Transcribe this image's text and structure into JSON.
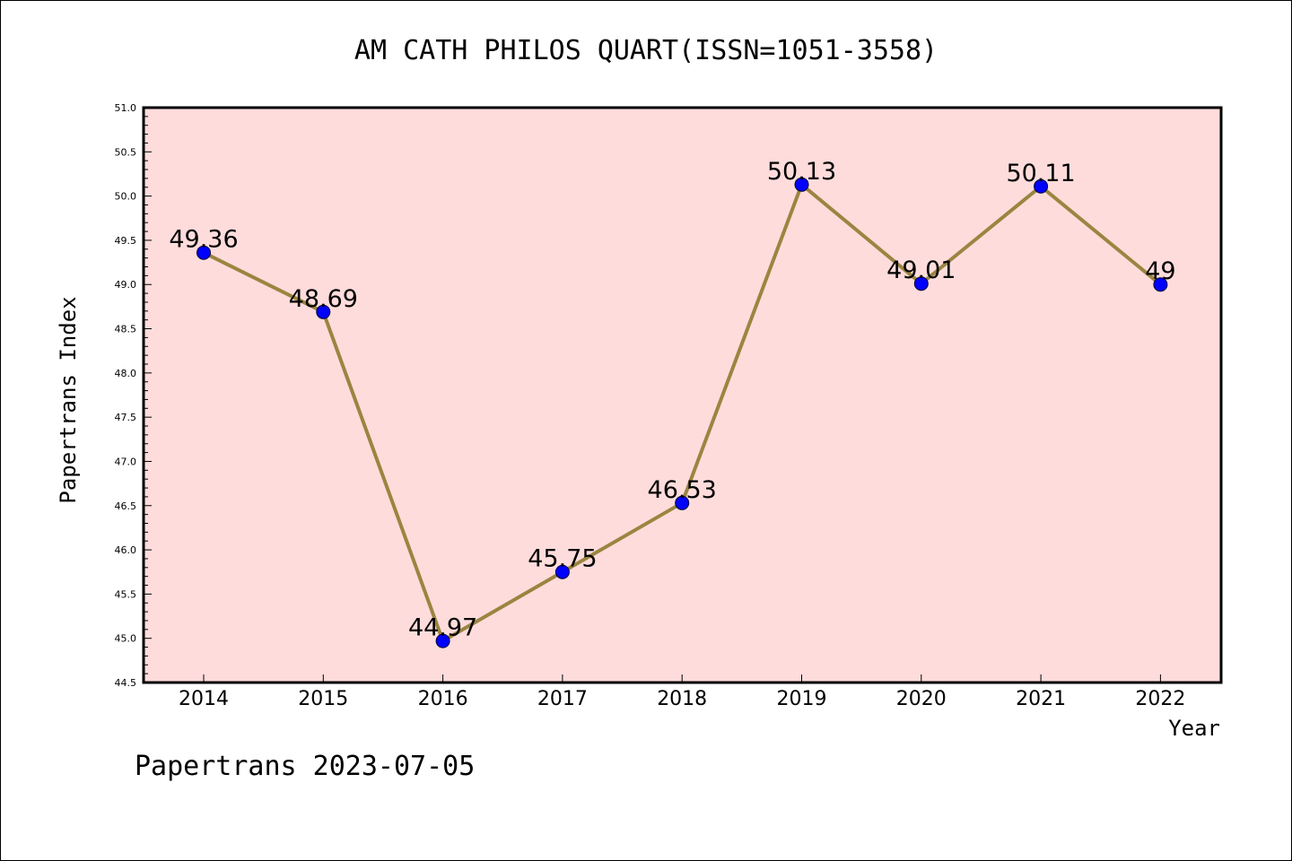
{
  "chart_data": {
    "type": "line",
    "title": "AM CATH PHILOS QUART(ISSN=1051-3558)",
    "xlabel": "Year",
    "ylabel": "Papertrans Index",
    "categories": [
      "2014",
      "2015",
      "2016",
      "2017",
      "2018",
      "2019",
      "2020",
      "2021",
      "2022"
    ],
    "values": [
      49.36,
      48.69,
      44.97,
      45.75,
      46.53,
      50.13,
      49.01,
      50.11,
      49
    ],
    "data_labels": [
      "49.36",
      "48.69",
      "44.97",
      "45.75",
      "46.53",
      "50.13",
      "49.01",
      "50.11",
      "49"
    ],
    "ylim": [
      44.5,
      51.0
    ],
    "y_ticks": [
      "44.5",
      "45.0",
      "45.5",
      "46.0",
      "46.5",
      "47.0",
      "47.5",
      "48.0",
      "48.5",
      "49.0",
      "49.5",
      "50.0",
      "50.5",
      "51.0"
    ],
    "grid": false,
    "colors": {
      "plot_background": "#ffdcdc",
      "line": "#9a8540",
      "marker": "#0000ff"
    }
  },
  "footer": {
    "text": "Papertrans 2023-07-05"
  }
}
